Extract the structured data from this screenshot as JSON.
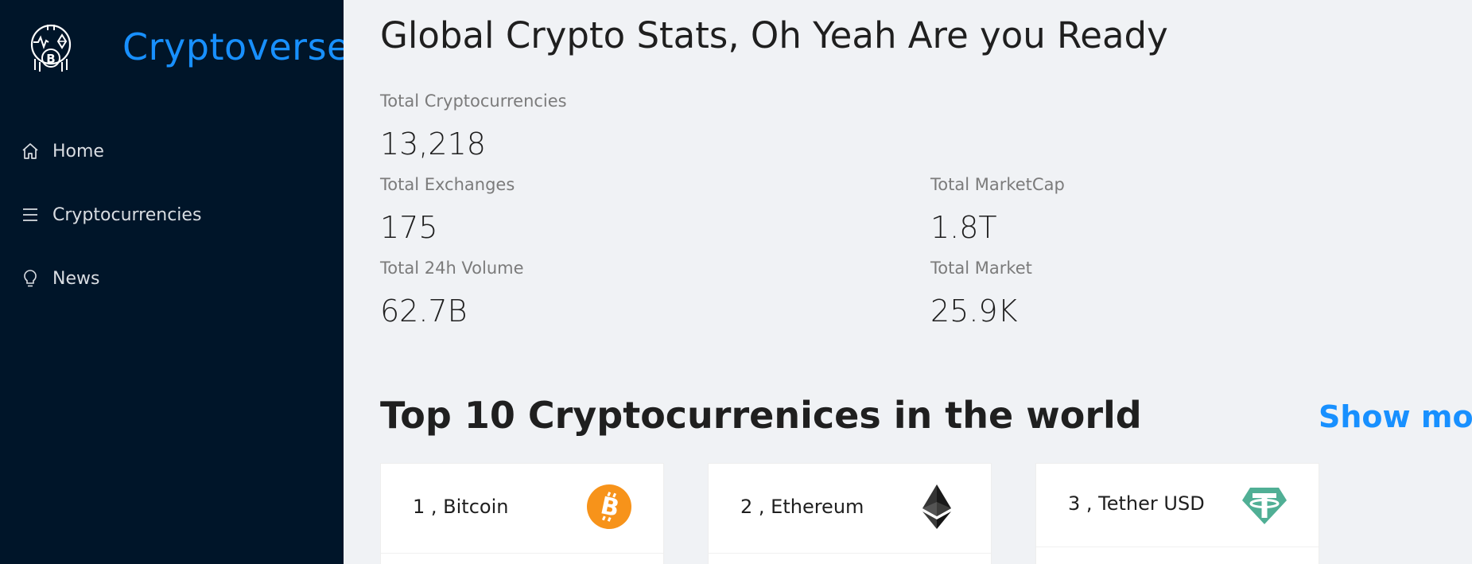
{
  "app": {
    "brand": "Cryptoverse",
    "logo_icon": "bitcoin-dreamcatcher-logo",
    "brand_color": "#1890ff",
    "sidebar_color": "#001529"
  },
  "nav": {
    "items": [
      {
        "label": "Home",
        "icon": "home-icon"
      },
      {
        "label": "Cryptocurrencies",
        "icon": "menu-icon"
      },
      {
        "label": "News",
        "icon": "bulb-icon"
      }
    ]
  },
  "main": {
    "title": "Global Crypto Stats, Oh Yeah Are you Ready",
    "stats": {
      "total_cryptocurrencies": {
        "label": "Total Cryptocurrencies",
        "value": "13,218"
      },
      "total_exchanges": {
        "label": "Total Exchanges",
        "value": "175"
      },
      "total_marketcap": {
        "label": "Total MarketCap",
        "value": "1.8T"
      },
      "total_24h_volume": {
        "label": "Total 24h Volume",
        "value": "62.7B"
      },
      "total_market": {
        "label": "Total Market",
        "value": "25.9K"
      }
    },
    "top10": {
      "title": "Top 10 Cryptocurrenices in the world",
      "show_more": "Show more",
      "cards": [
        {
          "title": "1 , Bitcoin",
          "icon": "bitcoin-icon",
          "color": "#f7931a"
        },
        {
          "title": "2 , Ethereum",
          "icon": "ethereum-icon",
          "color": "#343434"
        },
        {
          "title": "3 , Tether USD",
          "icon": "tether-icon",
          "color": "#50af95"
        }
      ]
    }
  }
}
